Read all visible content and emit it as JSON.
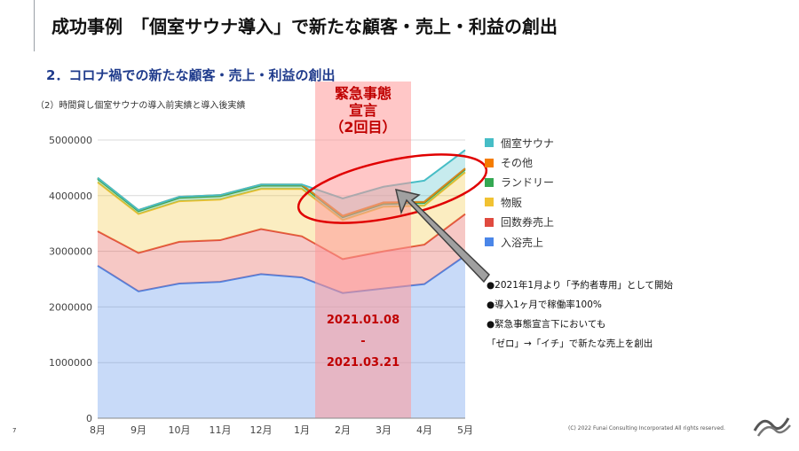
{
  "header": {
    "title": "成功事例　「個室サウナ導入」で新たな顧客・売上・利益の創出",
    "subtitle": "2．コロナ禍での新たな顧客・売上・利益の創出",
    "chart_caption": "（2）時間貸し個室サウナの導入前実績と導入後実績"
  },
  "emergency": {
    "title_line1": "緊急事態",
    "title_line2": "宣言",
    "title_line3": "（2回目）",
    "date_start": "2021.01.08",
    "date_sep": "-",
    "date_end": "2021.03.21",
    "band_color": "#ff9999",
    "text_color": "#c00000"
  },
  "notes": [
    "●2021年1月より「予約者専用」として開始",
    "●導入1ヶ月で稼働率100%",
    "●緊急事態宣言下においても",
    "「ゼロ」→「イチ」で新たな売上を創出"
  ],
  "footer": {
    "page_number": "7",
    "copyright": "(C) 2022 Funai Consulting Incorporated All rights reserved."
  },
  "chart_data": {
    "type": "area",
    "stacked": true,
    "categories": [
      "8月",
      "9月",
      "10月",
      "11月",
      "12月",
      "1月",
      "2月",
      "3月",
      "4月",
      "5月"
    ],
    "ylim": [
      0,
      5000000
    ],
    "yticks": [
      0,
      1000000,
      2000000,
      3000000,
      4000000,
      5000000
    ],
    "ytick_labels": [
      "0",
      "1000000",
      "2000000",
      "3000000",
      "4000000",
      "5000000"
    ],
    "grid": true,
    "legend_position": "right",
    "highlight_range": [
      "1月",
      "4月"
    ],
    "series": [
      {
        "name": "入浴売上",
        "color": "#4a86e8",
        "values": [
          2740000,
          2280000,
          2420000,
          2450000,
          2590000,
          2530000,
          2250000,
          2330000,
          2410000,
          2920000
        ]
      },
      {
        "name": "回数券売上",
        "color": "#e04a3f",
        "values": [
          620000,
          690000,
          750000,
          750000,
          810000,
          740000,
          610000,
          670000,
          710000,
          750000
        ]
      },
      {
        "name": "物販",
        "color": "#f1c232",
        "values": [
          880000,
          700000,
          730000,
          730000,
          720000,
          850000,
          700000,
          800000,
          700000,
          750000
        ]
      },
      {
        "name": "ランドリー",
        "color": "#34a853",
        "values": [
          60000,
          50000,
          60000,
          60000,
          60000,
          60000,
          50000,
          50000,
          50000,
          50000
        ]
      },
      {
        "name": "その他",
        "color": "#f57c00",
        "values": [
          20000,
          20000,
          20000,
          20000,
          20000,
          20000,
          30000,
          30000,
          20000,
          20000
        ]
      },
      {
        "name": "個室サウナ",
        "color": "#46bdc6",
        "values": [
          0,
          0,
          0,
          0,
          0,
          0,
          310000,
          280000,
          380000,
          330000
        ]
      }
    ]
  }
}
